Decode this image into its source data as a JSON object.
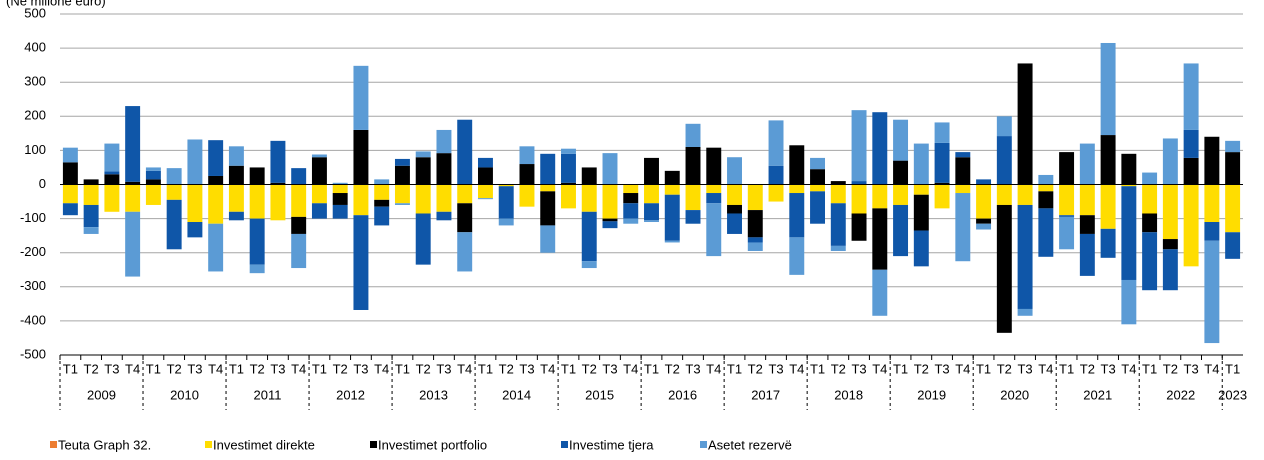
{
  "chart_data": {
    "type": "bar",
    "stacked": true,
    "subtitle": "(Në milionë euro)",
    "categories": [
      "T1",
      "T2",
      "T3",
      "T4",
      "T1",
      "T2",
      "T3",
      "T4",
      "T1",
      "T2",
      "T3",
      "T4",
      "T1",
      "T2",
      "T3",
      "T4",
      "T1",
      "T2",
      "T3",
      "T4",
      "T1",
      "T2",
      "T3",
      "T4",
      "T1",
      "T2",
      "T3",
      "T4",
      "T1",
      "T2",
      "T3",
      "T4",
      "T1",
      "T2",
      "T3",
      "T4",
      "T1",
      "T2",
      "T3",
      "T4",
      "T1",
      "T2",
      "T3",
      "T4",
      "T1",
      "T2",
      "T3",
      "T4",
      "T1",
      "T2",
      "T3",
      "T4",
      "T1",
      "T2",
      "T3",
      "T4",
      "T1"
    ],
    "years": [
      "2009",
      "2010",
      "2011",
      "2012",
      "2013",
      "2014",
      "2015",
      "2016",
      "2017",
      "2018",
      "2019",
      "2020",
      "2021",
      "2022",
      "2023"
    ],
    "series": [
      {
        "name": "Teuta Graph 32.",
        "color": "#ed7d31",
        "values": [
          null,
          null,
          null,
          null,
          null,
          null,
          null,
          null,
          null,
          null,
          null,
          null,
          null,
          null,
          null,
          null,
          null,
          null,
          null,
          null,
          null,
          null,
          null,
          null,
          null,
          null,
          null,
          null,
          null,
          null,
          null,
          null,
          null,
          null,
          null,
          null,
          null,
          null,
          null,
          null,
          null,
          null,
          null,
          null,
          null,
          null,
          null,
          null,
          null,
          null,
          null,
          null,
          null,
          null,
          null,
          null,
          null
        ]
      },
      {
        "name": "Investimet direkte",
        "color": "#ffdd00",
        "values": [
          -55,
          -60,
          -80,
          -80,
          -60,
          -45,
          -110,
          -115,
          -80,
          -100,
          -105,
          -95,
          -55,
          -25,
          -90,
          -45,
          -55,
          -85,
          -80,
          -55,
          -40,
          -5,
          -65,
          -20,
          -70,
          -80,
          -100,
          -25,
          -55,
          -30,
          -75,
          -25,
          -60,
          -75,
          -50,
          -25,
          -20,
          -55,
          -85,
          -70,
          -60,
          -30,
          -70,
          -25,
          -100,
          -60,
          -60,
          -20,
          -90,
          -90,
          -130,
          -5,
          -85,
          -160,
          -240,
          -110,
          -140
        ]
      },
      {
        "name": "Investimet portfolio",
        "color": "#000000",
        "values": [
          65,
          15,
          30,
          8,
          15,
          0,
          0,
          25,
          55,
          50,
          5,
          -50,
          80,
          -35,
          160,
          -20,
          55,
          80,
          92,
          -85,
          50,
          0,
          60,
          -100,
          5,
          50,
          -8,
          -30,
          78,
          40,
          110,
          108,
          -25,
          -80,
          0,
          115,
          45,
          10,
          -80,
          -180,
          70,
          -105,
          5,
          80,
          -15,
          -375,
          355,
          -50,
          95,
          -55,
          145,
          90,
          -55,
          -30,
          78,
          140,
          95
        ]
      },
      {
        "name": "Investime tjera",
        "color": "#0f56a8",
        "values": [
          -35,
          -65,
          8,
          222,
          25,
          -145,
          -45,
          105,
          -25,
          -135,
          123,
          48,
          -45,
          -40,
          -278,
          -55,
          20,
          -150,
          -25,
          190,
          28,
          -95,
          0,
          90,
          85,
          -145,
          -20,
          -45,
          -50,
          -135,
          -40,
          -30,
          -60,
          -15,
          55,
          -130,
          -95,
          -125,
          10,
          212,
          -150,
          -105,
          117,
          15,
          15,
          142,
          -305,
          -142,
          -5,
          -123,
          -85,
          -275,
          -170,
          -120,
          82,
          -55,
          -78
        ]
      },
      {
        "name": "Asetet rezervë",
        "color": "#5b9bd5",
        "values": [
          43,
          -20,
          82,
          -190,
          10,
          48,
          132,
          -140,
          57,
          -25,
          0,
          -100,
          8,
          5,
          188,
          15,
          -5,
          17,
          68,
          -115,
          -3,
          -20,
          52,
          -80,
          15,
          -20,
          92,
          -15,
          -5,
          -5,
          68,
          -155,
          80,
          -25,
          133,
          -110,
          33,
          -15,
          208,
          -135,
          120,
          120,
          60,
          -200,
          -17,
          58,
          -20,
          28,
          -95,
          120,
          270,
          -130,
          35,
          135,
          195,
          -300,
          33
        ]
      }
    ],
    "ylim": [
      -500,
      500
    ],
    "yticks": [
      -500,
      -400,
      -300,
      -200,
      -100,
      0,
      100,
      200,
      300,
      400,
      500
    ],
    "grid": true
  }
}
